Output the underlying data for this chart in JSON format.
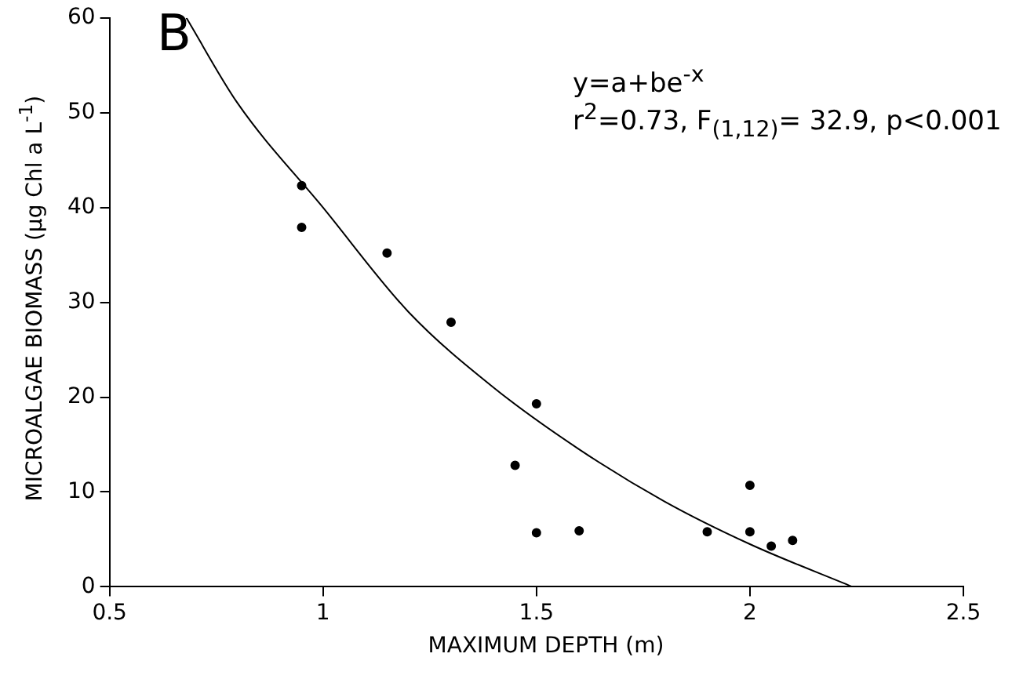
{
  "chart_data": {
    "type": "scatter",
    "xlabel": "MAXIMUM DEPTH (m)",
    "ylabel": "MICROALGAE BIOMASS (μg Chl a L$^{-1}$)",
    "annotations": [
      "B",
      "y=a+be$^{-x}$",
      "r$^{2}$=0.73, F$_{(1,12)}$= 32.9, p<0.001"
    ],
    "xlim": [
      0.5,
      2.5
    ],
    "xticks": [
      {
        "value": 0.5,
        "label": "0.5"
      },
      1,
      {
        "value": 1.5,
        "label": "1.5"
      },
      2,
      {
        "value": 2.5,
        "label": "2.5"
      }
    ],
    "ylim": [
      0,
      60
    ],
    "yticks": [
      0,
      10,
      20,
      30,
      40,
      50,
      60
    ],
    "grid": false,
    "legend": false,
    "series": [
      {
        "color": "#000000",
        "marker": "circle",
        "x": [
          0.95,
          0.95,
          1.15,
          1.3,
          1.45,
          1.5,
          1.5,
          1.6,
          1.9,
          2.0,
          2.0,
          2.05,
          2.1
        ],
        "values": [
          42.3,
          37.9,
          35.2,
          27.9,
          12.8,
          19.3,
          5.7,
          5.9,
          5.8,
          10.7,
          5.8,
          4.3,
          4.9
        ]
      },
      {
        "type": "line",
        "color": "#000000",
        "marker": "none",
        "line_style": "solid",
        "x": [
          0.68,
          0.8,
          1.0,
          1.2,
          1.4,
          1.6,
          1.8,
          2.0,
          2.24
        ],
        "values": [
          60,
          51,
          40,
          29,
          21,
          14.5,
          9,
          4.5,
          0
        ]
      }
    ]
  }
}
